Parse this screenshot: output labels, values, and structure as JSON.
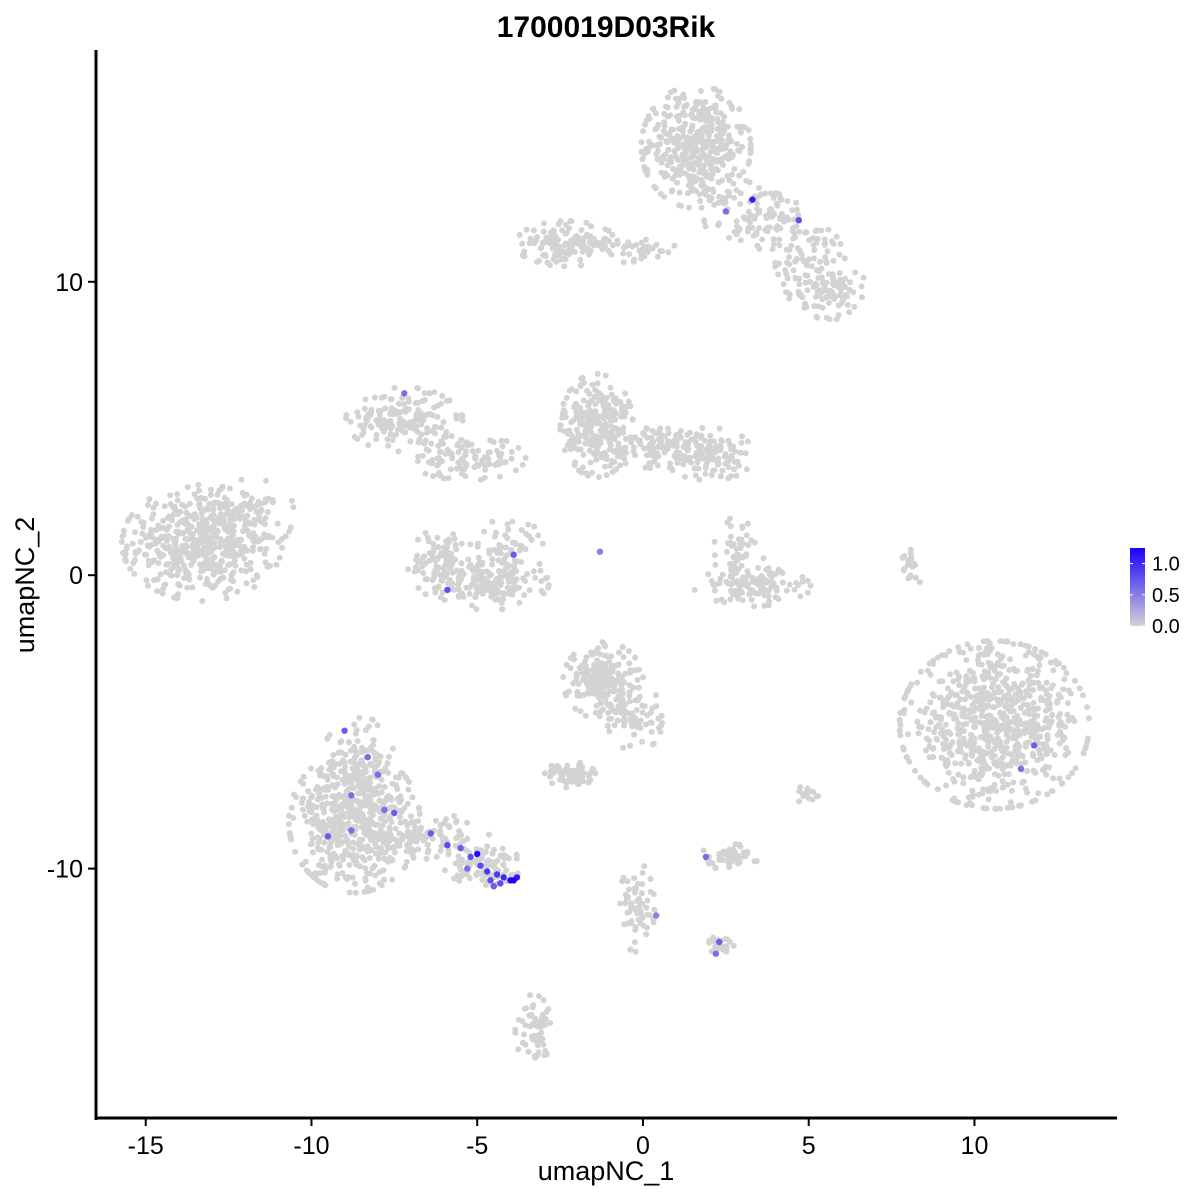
{
  "chart_data": {
    "type": "scatter",
    "title": "1700019D03Rik",
    "xlabel": "umapNC_1",
    "ylabel": "umapNC_2",
    "xlim": [
      -16.5,
      14.3
    ],
    "ylim": [
      -18.5,
      17.9
    ],
    "xticks": [
      -15,
      -10,
      -5,
      0,
      5,
      10
    ],
    "xtick_labels": [
      "-15",
      "-10",
      "-5",
      "0",
      "5",
      "10"
    ],
    "yticks": [
      -10,
      0,
      10
    ],
    "ytick_labels": [
      "-10",
      "0",
      "10"
    ],
    "grid": false,
    "legend_position": "right",
    "colors": {
      "low": "#d3d3d3",
      "high": "#1a00ff",
      "axis": "#000000"
    },
    "colorbar": {
      "min": 0.0,
      "max": 1.25,
      "ticks": [
        1.0,
        0.5,
        0.0
      ],
      "tick_labels": [
        "1.0",
        "0.5",
        "0.0"
      ]
    },
    "clusters": [
      {
        "cx": -13.3,
        "cy": 1.1,
        "sx": 1.1,
        "sy": 0.9,
        "n": 520
      },
      {
        "cx": -11.8,
        "cy": 2.0,
        "sx": 0.6,
        "sy": 0.6,
        "n": 40
      },
      {
        "cx": 1.6,
        "cy": 14.6,
        "sx": 0.75,
        "sy": 0.95,
        "n": 420
      },
      {
        "cx": 3.6,
        "cy": 12.2,
        "sx": 0.8,
        "sy": 0.6,
        "n": 110
      },
      {
        "cx": 5.2,
        "cy": 10.6,
        "sx": 0.55,
        "sy": 0.7,
        "n": 90
      },
      {
        "cx": 5.7,
        "cy": 9.6,
        "sx": 0.55,
        "sy": 0.4,
        "n": 60
      },
      {
        "cx": -2.3,
        "cy": 11.3,
        "sx": 0.7,
        "sy": 0.35,
        "n": 140
      },
      {
        "cx": -0.3,
        "cy": 11.1,
        "sx": 0.7,
        "sy": 0.2,
        "n": 40
      },
      {
        "cx": -7.2,
        "cy": 5.3,
        "sx": 0.8,
        "sy": 0.5,
        "n": 170
      },
      {
        "cx": -5.3,
        "cy": 4.0,
        "sx": 0.8,
        "sy": 0.35,
        "n": 100
      },
      {
        "cx": -1.4,
        "cy": 5.1,
        "sx": 0.5,
        "sy": 0.8,
        "n": 260
      },
      {
        "cx": 0.8,
        "cy": 4.4,
        "sx": 1.1,
        "sy": 0.35,
        "n": 140
      },
      {
        "cx": 2.0,
        "cy": 4.0,
        "sx": 0.6,
        "sy": 0.35,
        "n": 80
      },
      {
        "cx": -6.0,
        "cy": 0.4,
        "sx": 0.5,
        "sy": 0.55,
        "n": 110
      },
      {
        "cx": -4.6,
        "cy": -0.3,
        "sx": 0.8,
        "sy": 0.4,
        "n": 140
      },
      {
        "cx": -4.0,
        "cy": 0.9,
        "sx": 0.45,
        "sy": 0.5,
        "n": 60
      },
      {
        "cx": 3.3,
        "cy": -0.4,
        "sx": 0.8,
        "sy": 0.3,
        "n": 110
      },
      {
        "cx": 2.9,
        "cy": 0.8,
        "sx": 0.35,
        "sy": 0.55,
        "n": 50
      },
      {
        "cx": 10.6,
        "cy": -5.1,
        "sx": 1.3,
        "sy": 1.3,
        "n": 760
      },
      {
        "cx": -1.2,
        "cy": -3.6,
        "sx": 0.55,
        "sy": 0.6,
        "n": 200
      },
      {
        "cx": -0.2,
        "cy": -4.9,
        "sx": 0.4,
        "sy": 0.5,
        "n": 60
      },
      {
        "cx": -8.7,
        "cy": -8.4,
        "sx": 0.9,
        "sy": 1.1,
        "n": 560
      },
      {
        "cx": -8.5,
        "cy": -6.4,
        "sx": 0.55,
        "sy": 0.7,
        "n": 90
      },
      {
        "cx": -6.4,
        "cy": -8.9,
        "sx": 0.8,
        "sy": 0.35,
        "n": 90
      },
      {
        "cx": -4.8,
        "cy": -9.9,
        "sx": 0.55,
        "sy": 0.3,
        "n": 100
      },
      {
        "cx": -2.2,
        "cy": -6.8,
        "sx": 0.35,
        "sy": 0.2,
        "n": 60
      },
      {
        "cx": 2.6,
        "cy": -9.6,
        "sx": 0.4,
        "sy": 0.2,
        "n": 60
      },
      {
        "cx": 2.4,
        "cy": -12.6,
        "sx": 0.2,
        "sy": 0.15,
        "n": 30
      },
      {
        "cx": -0.2,
        "cy": -11.3,
        "sx": 0.25,
        "sy": 0.7,
        "n": 60
      },
      {
        "cx": -3.3,
        "cy": -15.5,
        "sx": 0.25,
        "sy": 0.55,
        "n": 60
      },
      {
        "cx": 8.1,
        "cy": 0.3,
        "sx": 0.15,
        "sy": 0.4,
        "n": 20
      },
      {
        "cx": 5.0,
        "cy": -7.5,
        "sx": 0.15,
        "sy": 0.2,
        "n": 15
      }
    ],
    "expressing_points": [
      {
        "x": 3.3,
        "y": 12.8,
        "v": 1.1
      },
      {
        "x": 2.5,
        "y": 12.4,
        "v": 0.6
      },
      {
        "x": 4.7,
        "y": 12.1,
        "v": 0.8
      },
      {
        "x": -7.2,
        "y": 6.2,
        "v": 0.6
      },
      {
        "x": -3.9,
        "y": 0.7,
        "v": 0.7
      },
      {
        "x": -5.9,
        "y": -0.5,
        "v": 0.8
      },
      {
        "x": -1.3,
        "y": 0.8,
        "v": 0.5
      },
      {
        "x": 11.8,
        "y": -5.8,
        "v": 0.7
      },
      {
        "x": 11.4,
        "y": -6.6,
        "v": 0.6
      },
      {
        "x": -9.0,
        "y": -5.3,
        "v": 0.7
      },
      {
        "x": -8.3,
        "y": -6.2,
        "v": 0.6
      },
      {
        "x": -8.0,
        "y": -6.8,
        "v": 0.6
      },
      {
        "x": -8.8,
        "y": -7.5,
        "v": 0.6
      },
      {
        "x": -7.5,
        "y": -8.1,
        "v": 0.7
      },
      {
        "x": -7.8,
        "y": -8.0,
        "v": 0.6
      },
      {
        "x": -9.5,
        "y": -8.9,
        "v": 0.7
      },
      {
        "x": -8.8,
        "y": -8.7,
        "v": 0.6
      },
      {
        "x": -6.4,
        "y": -8.8,
        "v": 0.7
      },
      {
        "x": -5.9,
        "y": -9.2,
        "v": 0.8
      },
      {
        "x": -5.5,
        "y": -9.3,
        "v": 0.7
      },
      {
        "x": -5.2,
        "y": -9.6,
        "v": 0.8
      },
      {
        "x": -5.0,
        "y": -9.5,
        "v": 1.2
      },
      {
        "x": -4.9,
        "y": -9.9,
        "v": 0.8
      },
      {
        "x": -4.7,
        "y": -10.1,
        "v": 0.9
      },
      {
        "x": -4.6,
        "y": -10.4,
        "v": 0.8
      },
      {
        "x": -4.4,
        "y": -10.2,
        "v": 0.9
      },
      {
        "x": -4.3,
        "y": -10.5,
        "v": 0.8
      },
      {
        "x": -4.2,
        "y": -10.3,
        "v": 1.0
      },
      {
        "x": -4.0,
        "y": -10.4,
        "v": 1.2
      },
      {
        "x": -3.9,
        "y": -10.4,
        "v": 1.25
      },
      {
        "x": -3.8,
        "y": -10.3,
        "v": 1.1
      },
      {
        "x": -5.3,
        "y": -10.0,
        "v": 0.6
      },
      {
        "x": -4.5,
        "y": -10.6,
        "v": 0.7
      },
      {
        "x": 1.9,
        "y": -9.6,
        "v": 0.6
      },
      {
        "x": 0.4,
        "y": -11.6,
        "v": 0.5
      },
      {
        "x": 2.3,
        "y": -12.5,
        "v": 0.7
      },
      {
        "x": 2.2,
        "y": -12.9,
        "v": 0.6
      }
    ]
  }
}
